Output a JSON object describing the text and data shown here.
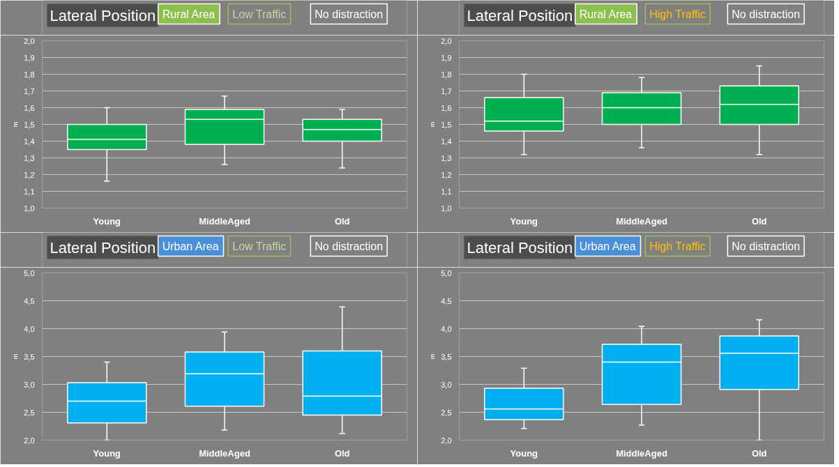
{
  "chart_data": [
    {
      "type": "box",
      "title": "Lateral Position",
      "annotations": [
        "Rural Area",
        "Low Traffic",
        "No distraction"
      ],
      "ylabel": "m",
      "categories": [
        "Young",
        "MiddleAged",
        "Old"
      ],
      "color": "#00b050",
      "grid": "y",
      "ylim": [
        1.0,
        2.0
      ],
      "yticks": [
        {
          "value": 1.0,
          "label": "1,0"
        },
        {
          "value": 1.1,
          "label": "1,1"
        },
        {
          "value": 1.2,
          "label": "1,2"
        },
        {
          "value": 1.3,
          "label": "1,3"
        },
        {
          "value": 1.4,
          "label": "1,4"
        },
        {
          "value": 1.5,
          "label": "1,5"
        },
        {
          "value": 1.6,
          "label": "1,6"
        },
        {
          "value": 1.7,
          "label": "1,7"
        },
        {
          "value": 1.8,
          "label": "1,8"
        },
        {
          "value": 1.9,
          "label": "1,9"
        },
        {
          "value": 2.0,
          "label": "2,0"
        }
      ],
      "boxes": [
        {
          "low": 1.16,
          "q1": 1.35,
          "median": 1.41,
          "q3": 1.5,
          "high": 1.6
        },
        {
          "low": 1.26,
          "q1": 1.38,
          "median": 1.53,
          "q3": 1.59,
          "high": 1.67
        },
        {
          "low": 1.24,
          "q1": 1.4,
          "median": 1.47,
          "q3": 1.53,
          "high": 1.59
        }
      ]
    },
    {
      "type": "box",
      "title": "Lateral Position",
      "annotations": [
        "Rural Area",
        "High Traffic",
        "No distraction"
      ],
      "ylabel": "m",
      "categories": [
        "Young",
        "MiddleAged",
        "Old"
      ],
      "color": "#00b050",
      "grid": "y",
      "ylim": [
        1.0,
        2.0
      ],
      "yticks": [
        {
          "value": 1.0,
          "label": "1,0"
        },
        {
          "value": 1.1,
          "label": "1,1"
        },
        {
          "value": 1.2,
          "label": "1,2"
        },
        {
          "value": 1.3,
          "label": "1,3"
        },
        {
          "value": 1.4,
          "label": "1,4"
        },
        {
          "value": 1.5,
          "label": "1,5"
        },
        {
          "value": 1.6,
          "label": "1,6"
        },
        {
          "value": 1.7,
          "label": "1,7"
        },
        {
          "value": 1.8,
          "label": "1,8"
        },
        {
          "value": 1.9,
          "label": "1,9"
        },
        {
          "value": 2.0,
          "label": "2,0"
        }
      ],
      "boxes": [
        {
          "low": 1.32,
          "q1": 1.46,
          "median": 1.52,
          "q3": 1.66,
          "high": 1.8
        },
        {
          "low": 1.36,
          "q1": 1.5,
          "median": 1.6,
          "q3": 1.69,
          "high": 1.78
        },
        {
          "low": 1.32,
          "q1": 1.5,
          "median": 1.62,
          "q3": 1.73,
          "high": 1.85
        }
      ]
    },
    {
      "type": "box",
      "title": "Lateral Position",
      "annotations": [
        "Urban Area",
        "Low Traffic",
        "No distraction"
      ],
      "ylabel": "m",
      "categories": [
        "Young",
        "MiddleAged",
        "Old"
      ],
      "color": "#00b0f0",
      "grid": "y",
      "ylim": [
        2.0,
        5.0
      ],
      "yticks": [
        {
          "value": 2.0,
          "label": "2,0"
        },
        {
          "value": 2.5,
          "label": "2,5"
        },
        {
          "value": 3.0,
          "label": "3,0"
        },
        {
          "value": 3.5,
          "label": "3,5"
        },
        {
          "value": 4.0,
          "label": "4,0"
        },
        {
          "value": 4.5,
          "label": "4,5"
        },
        {
          "value": 5.0,
          "label": "5,0"
        }
      ],
      "boxes": [
        {
          "low": 2.0,
          "q1": 2.31,
          "median": 2.7,
          "q3": 3.03,
          "high": 3.4
        },
        {
          "low": 2.18,
          "q1": 2.61,
          "median": 3.19,
          "q3": 3.58,
          "high": 3.94
        },
        {
          "low": 2.12,
          "q1": 2.45,
          "median": 2.79,
          "q3": 3.6,
          "high": 4.39
        }
      ]
    },
    {
      "type": "box",
      "title": "Lateral Position",
      "annotations": [
        "Urban Area",
        "High Traffic",
        "No distraction"
      ],
      "ylabel": "m",
      "categories": [
        "Young",
        "MiddleAged",
        "Old"
      ],
      "color": "#00b0f0",
      "grid": "y",
      "ylim": [
        2.0,
        5.0
      ],
      "yticks": [
        {
          "value": 2.0,
          "label": "2,0"
        },
        {
          "value": 2.5,
          "label": "2,5"
        },
        {
          "value": 3.0,
          "label": "3,0"
        },
        {
          "value": 3.5,
          "label": "3,5"
        },
        {
          "value": 4.0,
          "label": "4,0"
        },
        {
          "value": 4.5,
          "label": "4,5"
        },
        {
          "value": 5.0,
          "label": "5,0"
        }
      ],
      "boxes": [
        {
          "low": 2.21,
          "q1": 2.37,
          "median": 2.56,
          "q3": 2.93,
          "high": 3.29
        },
        {
          "low": 2.27,
          "q1": 2.64,
          "median": 3.4,
          "q3": 3.72,
          "high": 4.04
        },
        {
          "low": 2.0,
          "q1": 2.91,
          "median": 3.56,
          "q3": 3.87,
          "high": 4.16
        }
      ]
    }
  ]
}
